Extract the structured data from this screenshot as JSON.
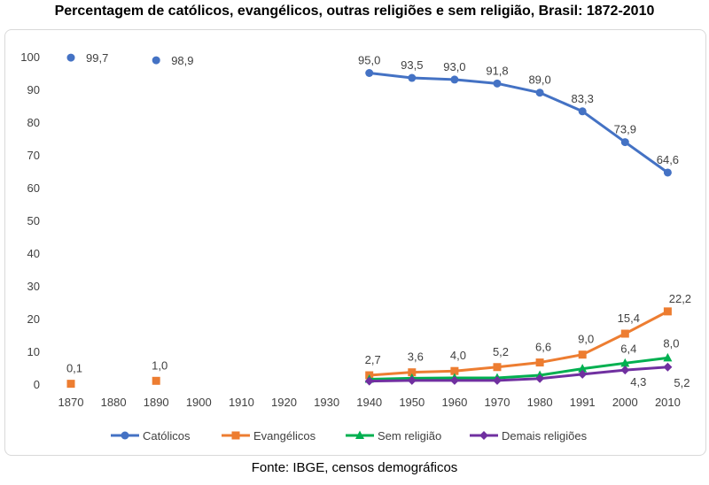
{
  "title": "Percentagem de católicos, evangélicos, outras religiões e sem religião, Brasil: 1872-2010",
  "source": "Fonte: IBGE, censos demográficos",
  "chart_data": {
    "type": "line",
    "categories": [
      "1870",
      "1880",
      "1890",
      "1900",
      "1910",
      "1920",
      "1930",
      "1940",
      "1950",
      "1960",
      "1970",
      "1980",
      "1991",
      "2000",
      "2010"
    ],
    "ylim": [
      0,
      100
    ],
    "yticks": [
      0,
      10,
      20,
      30,
      40,
      50,
      60,
      70,
      80,
      90,
      100
    ],
    "grid": false,
    "legend_position": "bottom",
    "series": [
      {
        "name": "Católicos",
        "color": "#4472C4",
        "marker": "circle",
        "values": [
          99.7,
          null,
          98.9,
          null,
          null,
          null,
          null,
          95.0,
          93.5,
          93.0,
          91.8,
          89.0,
          83.3,
          73.9,
          64.6
        ],
        "labels": [
          "99,7",
          null,
          "98,9",
          null,
          null,
          null,
          null,
          "95,0",
          "93,5",
          "93,0",
          "91,8",
          "89,0",
          "83,3",
          "73,9",
          "64,6"
        ]
      },
      {
        "name": "Evangélicos",
        "color": "#ED7D31",
        "marker": "square",
        "values": [
          0.1,
          null,
          1.0,
          null,
          null,
          null,
          null,
          2.7,
          3.6,
          4.0,
          5.2,
          6.6,
          9.0,
          15.4,
          22.2
        ],
        "labels": [
          "0,1",
          null,
          "1,0",
          null,
          null,
          null,
          null,
          "2,7",
          "3,6",
          "4,0",
          "5,2",
          "6,6",
          "9,0",
          "15,4",
          "22,2"
        ]
      },
      {
        "name": "Sem religião",
        "color": "#00B050",
        "marker": "triangle",
        "values": [
          null,
          null,
          null,
          null,
          null,
          null,
          null,
          1.5,
          1.8,
          1.9,
          1.9,
          2.7,
          4.7,
          6.4,
          8.0
        ],
        "labels": [
          null,
          null,
          null,
          null,
          null,
          null,
          null,
          null,
          null,
          null,
          null,
          null,
          null,
          "6,4",
          "8,0"
        ]
      },
      {
        "name": "Demais religiões",
        "color": "#7030A0",
        "marker": "diamond",
        "values": [
          null,
          null,
          null,
          null,
          null,
          null,
          null,
          0.9,
          1.1,
          1.1,
          1.1,
          1.7,
          3.0,
          4.3,
          5.2
        ],
        "labels": [
          null,
          null,
          null,
          null,
          null,
          null,
          null,
          null,
          null,
          null,
          null,
          null,
          null,
          "4,3",
          "5,2"
        ]
      }
    ]
  }
}
